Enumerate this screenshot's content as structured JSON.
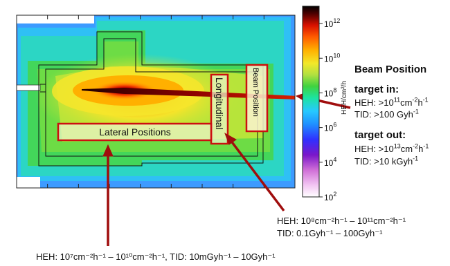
{
  "chart_data": {
    "type": "heatmap",
    "colorbar": {
      "label": "HEH/cm²/h",
      "scale": "log",
      "range": [
        100.0,
        10000000000000.0
      ],
      "ticks": [
        {
          "base": "10",
          "exp": "12",
          "value": 1000000000000.0
        },
        {
          "base": "10",
          "exp": "10",
          "value": 10000000000.0
        },
        {
          "base": "10",
          "exp": "8",
          "value": 100000000.0
        },
        {
          "base": "10",
          "exp": "6",
          "value": 1000000.0
        },
        {
          "base": "10",
          "exp": "4",
          "value": 10000.0
        },
        {
          "base": "10",
          "exp": "2",
          "value": 100.0
        }
      ],
      "colors": [
        "#ffffff",
        "#f3c7f3",
        "#d070d7",
        "#7a17c9",
        "#3030ff",
        "#1f8fff",
        "#27c9ff",
        "#1de3a0",
        "#3fd23f",
        "#b0e040",
        "#f2e82a",
        "#ffb000",
        "#ff5a00",
        "#d81000",
        "#500000",
        "#000000"
      ]
    },
    "boxes": {
      "lateral": "Lateral Positions",
      "longitudinal": "Longitudinal",
      "beam": "Beam Position"
    }
  },
  "annotations": {
    "beam_title": "Beam Position",
    "target_in": {
      "heading": "target in:",
      "heh_prefix": "HEH: >10",
      "heh_exp": "11",
      "heh_unit1": "cm",
      "heh_unit1_exp": "-2",
      "heh_unit2": "h",
      "heh_unit2_exp": "-1",
      "tid": "TID: >100 Gyh",
      "tid_exp": "-1"
    },
    "target_out": {
      "heading": "target out:",
      "heh_prefix": "HEH: >10",
      "heh_exp": "13",
      "heh_unit1": "cm",
      "heh_unit1_exp": "-2",
      "heh_unit2": "h",
      "heh_unit2_exp": "-1",
      "tid": "TID: >10 kGyh",
      "tid_exp": "-1"
    },
    "longitudinal_range": {
      "line1": "HEH: 10⁸cm⁻²h⁻¹ – 10¹¹cm⁻²h⁻¹",
      "line2": "TID: 0.1Gyh⁻¹ – 100Gyh⁻¹"
    },
    "lateral_range": "HEH: 10⁷cm⁻²h⁻¹ – 10¹⁰cm⁻²h⁻¹,  TID: 10mGyh⁻¹ – 10Gyh⁻¹"
  }
}
